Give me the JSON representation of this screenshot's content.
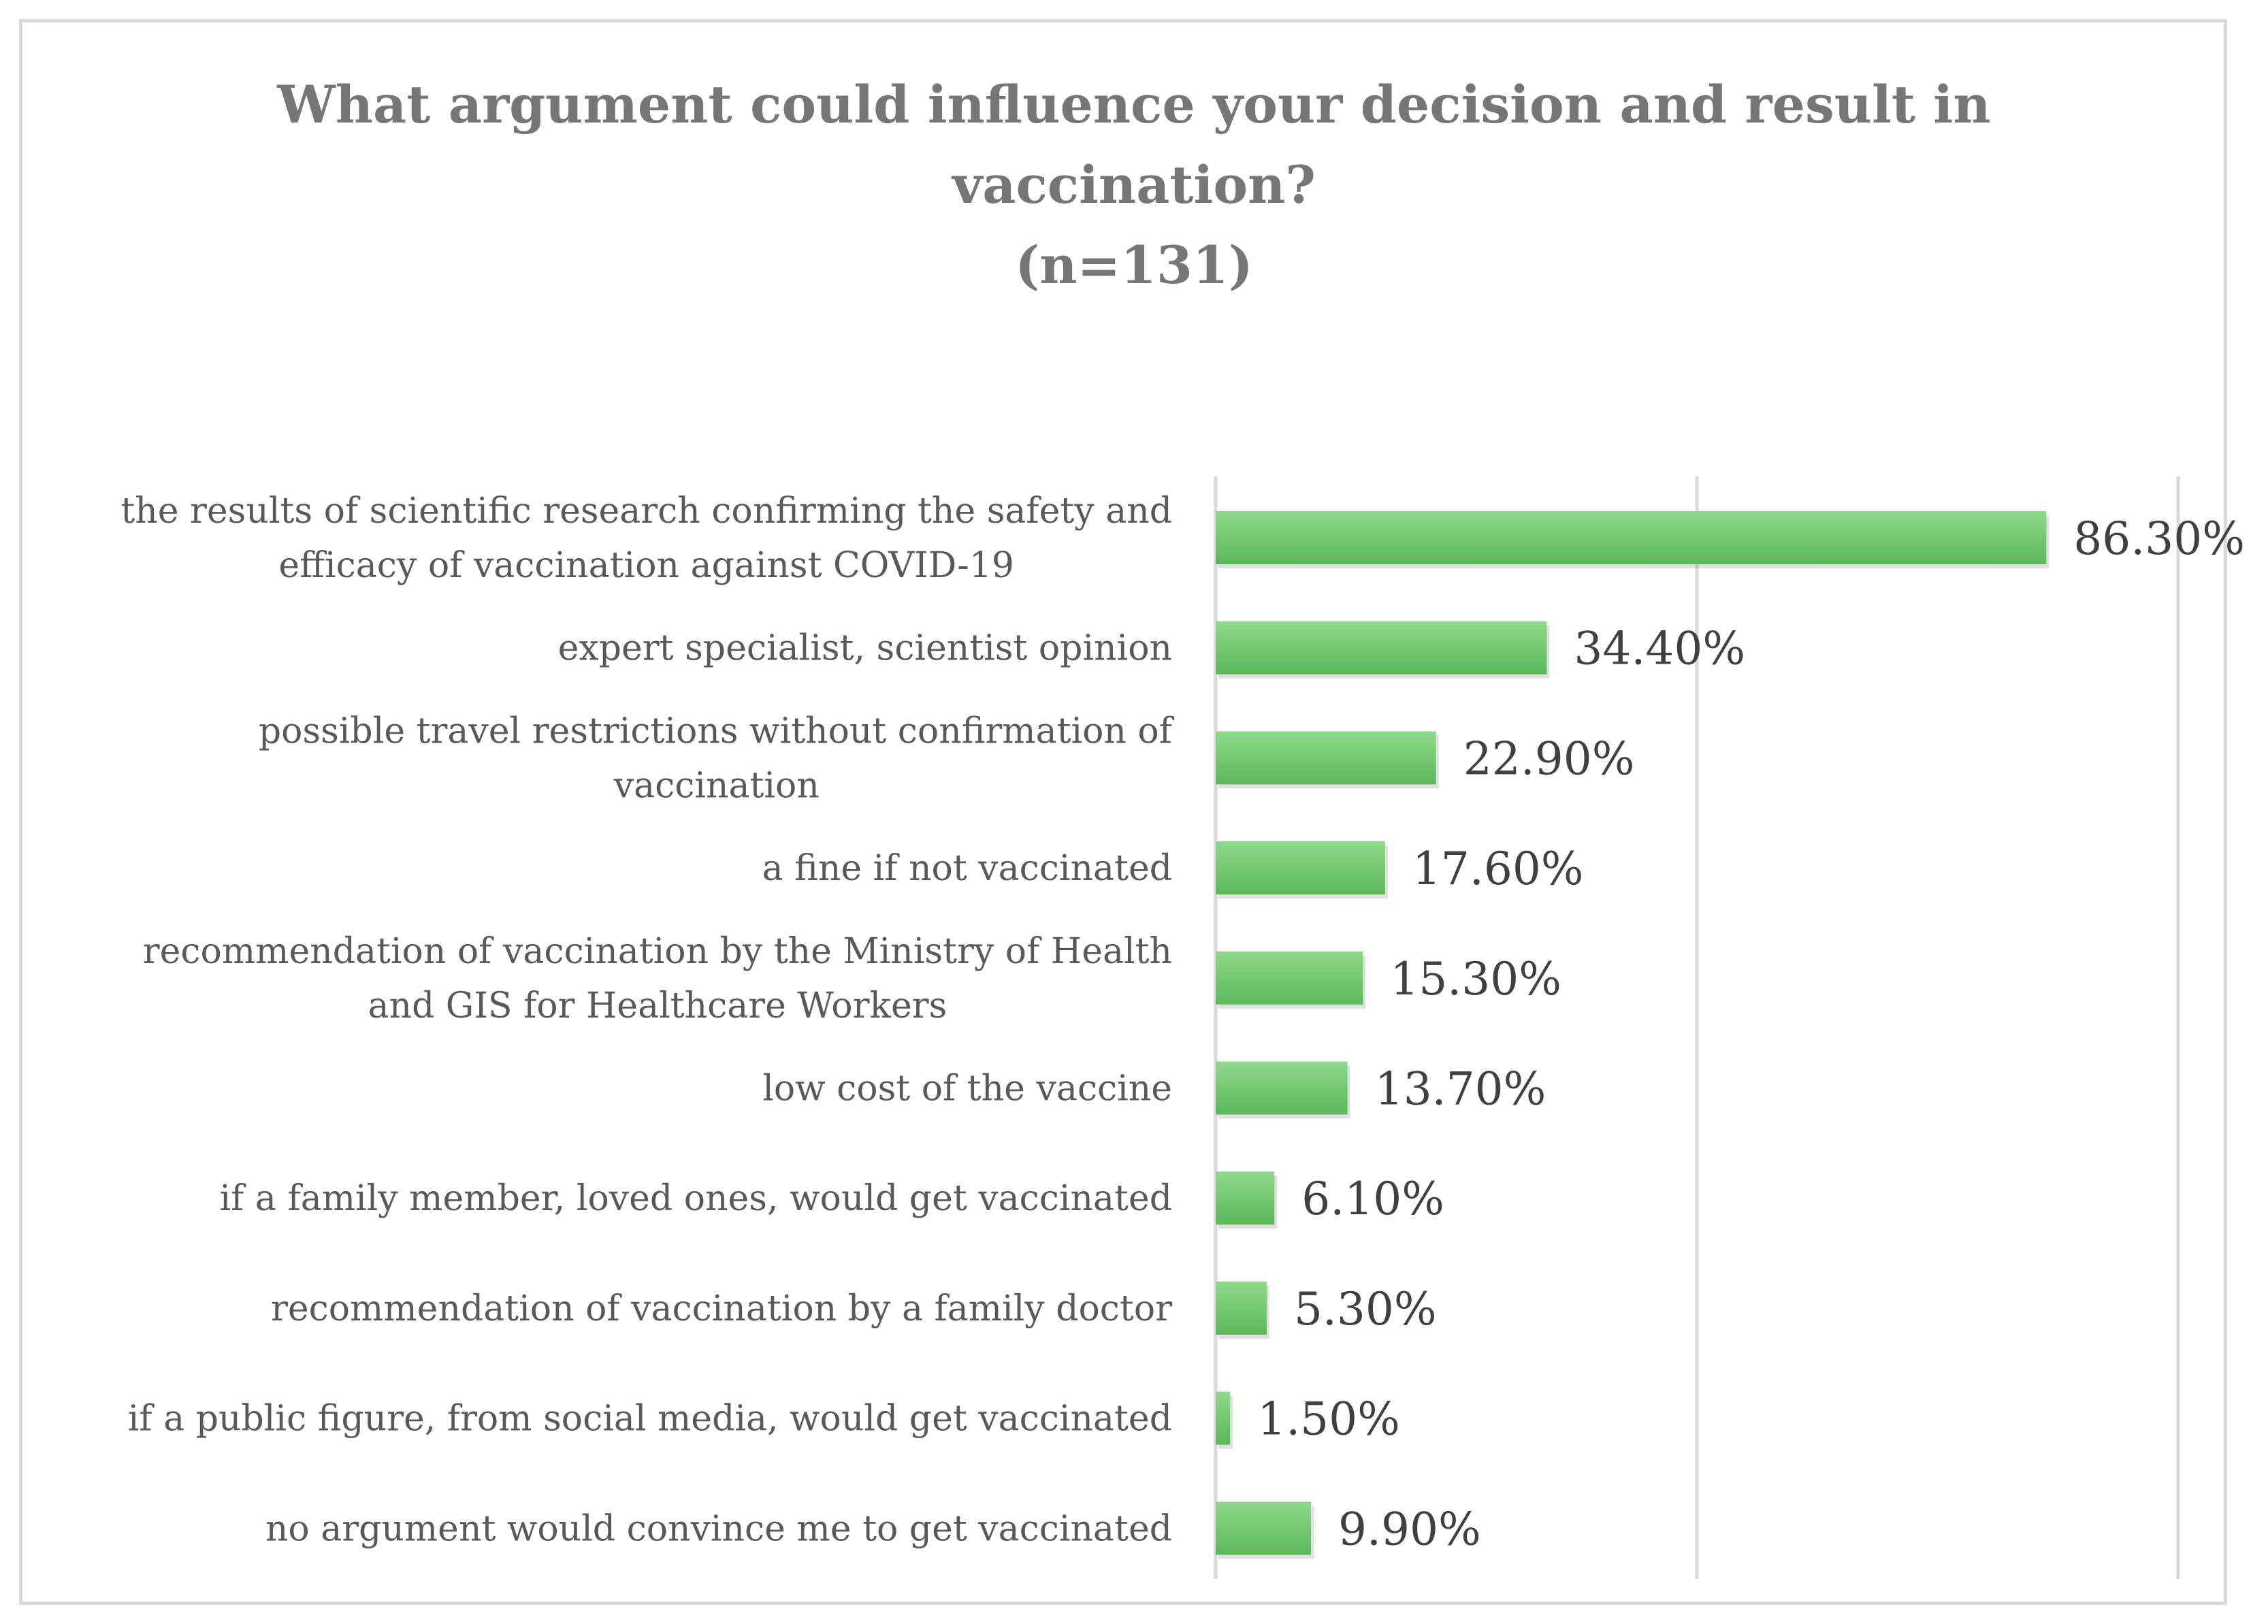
{
  "chart_data": {
    "type": "bar",
    "orientation": "horizontal",
    "title": [
      "What argument could influence your decision and result in",
      "vaccination?",
      "(n=131)"
    ],
    "categories": [
      "the results of scientific research confirming the safety and efficacy of vaccination against COVID-19",
      "expert specialist, scientist opinion",
      "possible travel restrictions without confirmation of vaccination",
      "a fine if not vaccinated",
      "recommendation of vaccination by the Ministry of Health and GIS for Healthcare Workers",
      "low cost of the vaccine",
      "if a family member, loved ones, would get vaccinated",
      "recommendation of vaccination by a family doctor",
      "if a public figure, from social media, would get vaccinated",
      "no argument would convince me to get vaccinated"
    ],
    "category_lines": [
      [
        "the results of scientific research confirming the safety and",
        "efficacy of vaccination against COVID-19"
      ],
      [
        "expert specialist, scientist opinion"
      ],
      [
        "possible travel restrictions without confirmation of",
        "vaccination"
      ],
      [
        "a fine if not vaccinated"
      ],
      [
        "recommendation of vaccination by the Ministry of Health",
        "and GIS for Healthcare Workers"
      ],
      [
        "low cost of the vaccine"
      ],
      [
        "if a family member, loved ones, would get vaccinated"
      ],
      [
        "recommendation of vaccination by a family doctor"
      ],
      [
        "if a public figure, from social media, would get vaccinated"
      ],
      [
        "no argument would convince me to get vaccinated"
      ]
    ],
    "values": [
      86.3,
      34.4,
      22.9,
      17.6,
      15.3,
      13.7,
      6.1,
      5.3,
      1.5,
      9.9
    ],
    "value_labels": [
      "86.30%",
      "34.40%",
      "22.90%",
      "17.60%",
      "15.30%",
      "13.70%",
      "6.10%",
      "5.30%",
      "1.50%",
      "9.90%"
    ],
    "xlim": [
      0,
      100
    ],
    "gridlines_at": [
      0,
      50,
      100
    ],
    "grid": true,
    "legend": "none",
    "bar_color": "#6cc46a",
    "bar_color_light": "#8fd88b"
  }
}
